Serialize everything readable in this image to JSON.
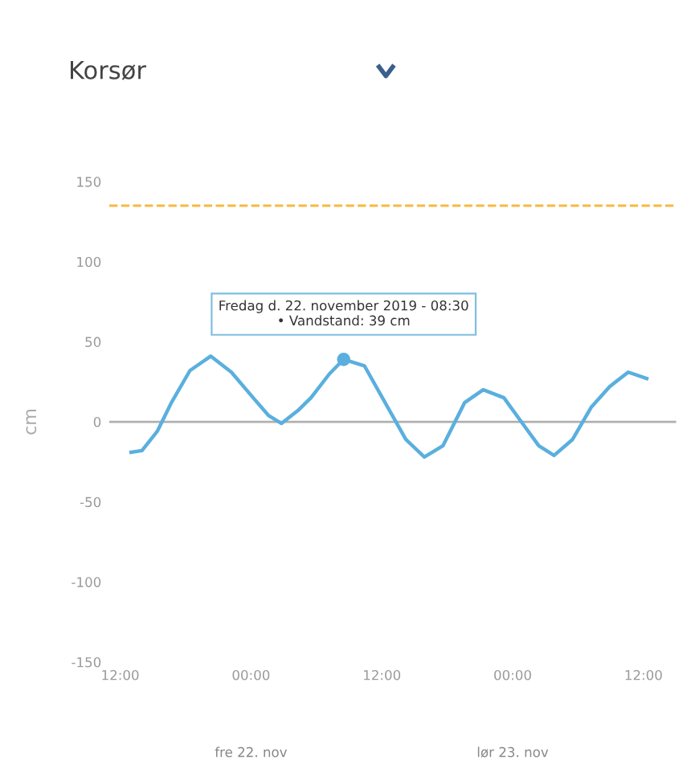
{
  "chart_data": {
    "type": "line",
    "title": "Korsør",
    "ylabel": "cm",
    "x": [
      "2019-11-21T13:00",
      "2019-11-21T14:00",
      "2019-11-21T15:24",
      "2019-11-21T16:42",
      "2019-11-21T18:24",
      "2019-11-21T20:18",
      "2019-11-21T22:12",
      "2019-11-22T00:12",
      "2019-11-22T01:36",
      "2019-11-22T02:48",
      "2019-11-22T04:18",
      "2019-11-22T05:30",
      "2019-11-22T07:12",
      "2019-11-22T08:30",
      "2019-11-22T10:24",
      "2019-11-22T12:18",
      "2019-11-22T14:12",
      "2019-11-22T15:54",
      "2019-11-22T17:36",
      "2019-11-22T19:36",
      "2019-11-22T21:18",
      "2019-11-22T23:12",
      "2019-11-23T00:54",
      "2019-11-23T02:24",
      "2019-11-23T03:48",
      "2019-11-23T05:30",
      "2019-11-23T07:12",
      "2019-11-23T08:54",
      "2019-11-23T10:36",
      "2019-11-23T12:18"
    ],
    "series": [
      {
        "color": "#5aafde",
        "values": [
          -19,
          -18,
          -6,
          12,
          32,
          41,
          31,
          15,
          4,
          -1,
          7,
          15,
          30,
          39,
          35,
          12,
          -11,
          -22,
          -15,
          12,
          20,
          15,
          -1,
          -15,
          -21,
          -11,
          9,
          22,
          31,
          27
        ]
      }
    ],
    "xlim": [
      "2019-11-21T11:00",
      "2019-11-23T15:00"
    ],
    "xticks": [
      {
        "value": "2019-11-21T12:00",
        "label": "12:00"
      },
      {
        "value": "2019-11-22T00:00",
        "label": "00:00"
      },
      {
        "value": "2019-11-22T12:00",
        "label": "12:00"
      },
      {
        "value": "2019-11-23T00:00",
        "label": "00:00"
      },
      {
        "value": "2019-11-23T12:00",
        "label": "12:00"
      }
    ],
    "ylim": [
      -150,
      150
    ],
    "yticks": [
      -150,
      -100,
      -50,
      0,
      50,
      100,
      150
    ],
    "ref_lines": [
      {
        "axis": "y",
        "value": 135,
        "color": "#f5b942",
        "line_style": "dashed"
      },
      {
        "axis": "y",
        "value": 0,
        "color": "#b0b0b0",
        "line_style": "solid"
      }
    ],
    "annotations": [
      {
        "text": "Fredag d. 22. november 2019 - 08:30\n• Vandstand: 39 cm",
        "x": "2019-11-22T08:30",
        "y": 39
      },
      "fre 22. nov",
      "lør 23. nov"
    ],
    "grid": false,
    "legend": false,
    "marker": "none",
    "line_style": "solid"
  }
}
